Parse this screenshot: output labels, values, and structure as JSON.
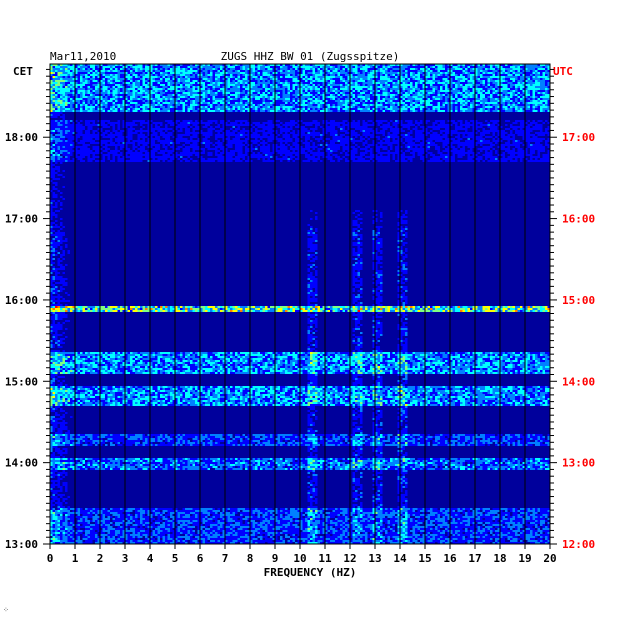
{
  "chart_data": {
    "type": "heatmap",
    "title_date": "Mar11,2010",
    "title": "ZUGS HHZ BW 01 (Zugsspitze)",
    "left_axis_label": "CET",
    "right_axis_label": "UTC",
    "xlabel": "FREQUENCY (HZ)",
    "xlim": [
      0,
      20
    ],
    "x_ticks": [
      "0",
      "1",
      "2",
      "3",
      "4",
      "5",
      "6",
      "7",
      "8",
      "9",
      "10",
      "11",
      "12",
      "13",
      "14",
      "15",
      "16",
      "17",
      "18",
      "19",
      "20"
    ],
    "y_range_hours_cet": [
      13.0,
      18.9
    ],
    "left_ticks": [
      {
        "hour": 18,
        "label": "18:00"
      },
      {
        "hour": 17,
        "label": "17:00"
      },
      {
        "hour": 16,
        "label": "16:00"
      },
      {
        "hour": 15,
        "label": "15:00"
      },
      {
        "hour": 14,
        "label": "14:00"
      },
      {
        "hour": 13,
        "label": "13:00"
      }
    ],
    "right_ticks": [
      {
        "hour": 18,
        "label": "17:00"
      },
      {
        "hour": 17,
        "label": "16:00"
      },
      {
        "hour": 16,
        "label": "15:00"
      },
      {
        "hour": 15,
        "label": "14:00"
      },
      {
        "hour": 14,
        "label": "13:00"
      },
      {
        "hour": 13,
        "label": "12:00"
      }
    ],
    "colors": {
      "background": "#00009c",
      "right_labels": "#ff0000",
      "grid": "#000000",
      "colormap": [
        "#00009c",
        "#0000ff",
        "#0080ff",
        "#00ffff",
        "#80ff80",
        "#ffff00",
        "#ff8000",
        "#ff0000"
      ]
    },
    "grid": true
  },
  "footer_mark": "⁘"
}
